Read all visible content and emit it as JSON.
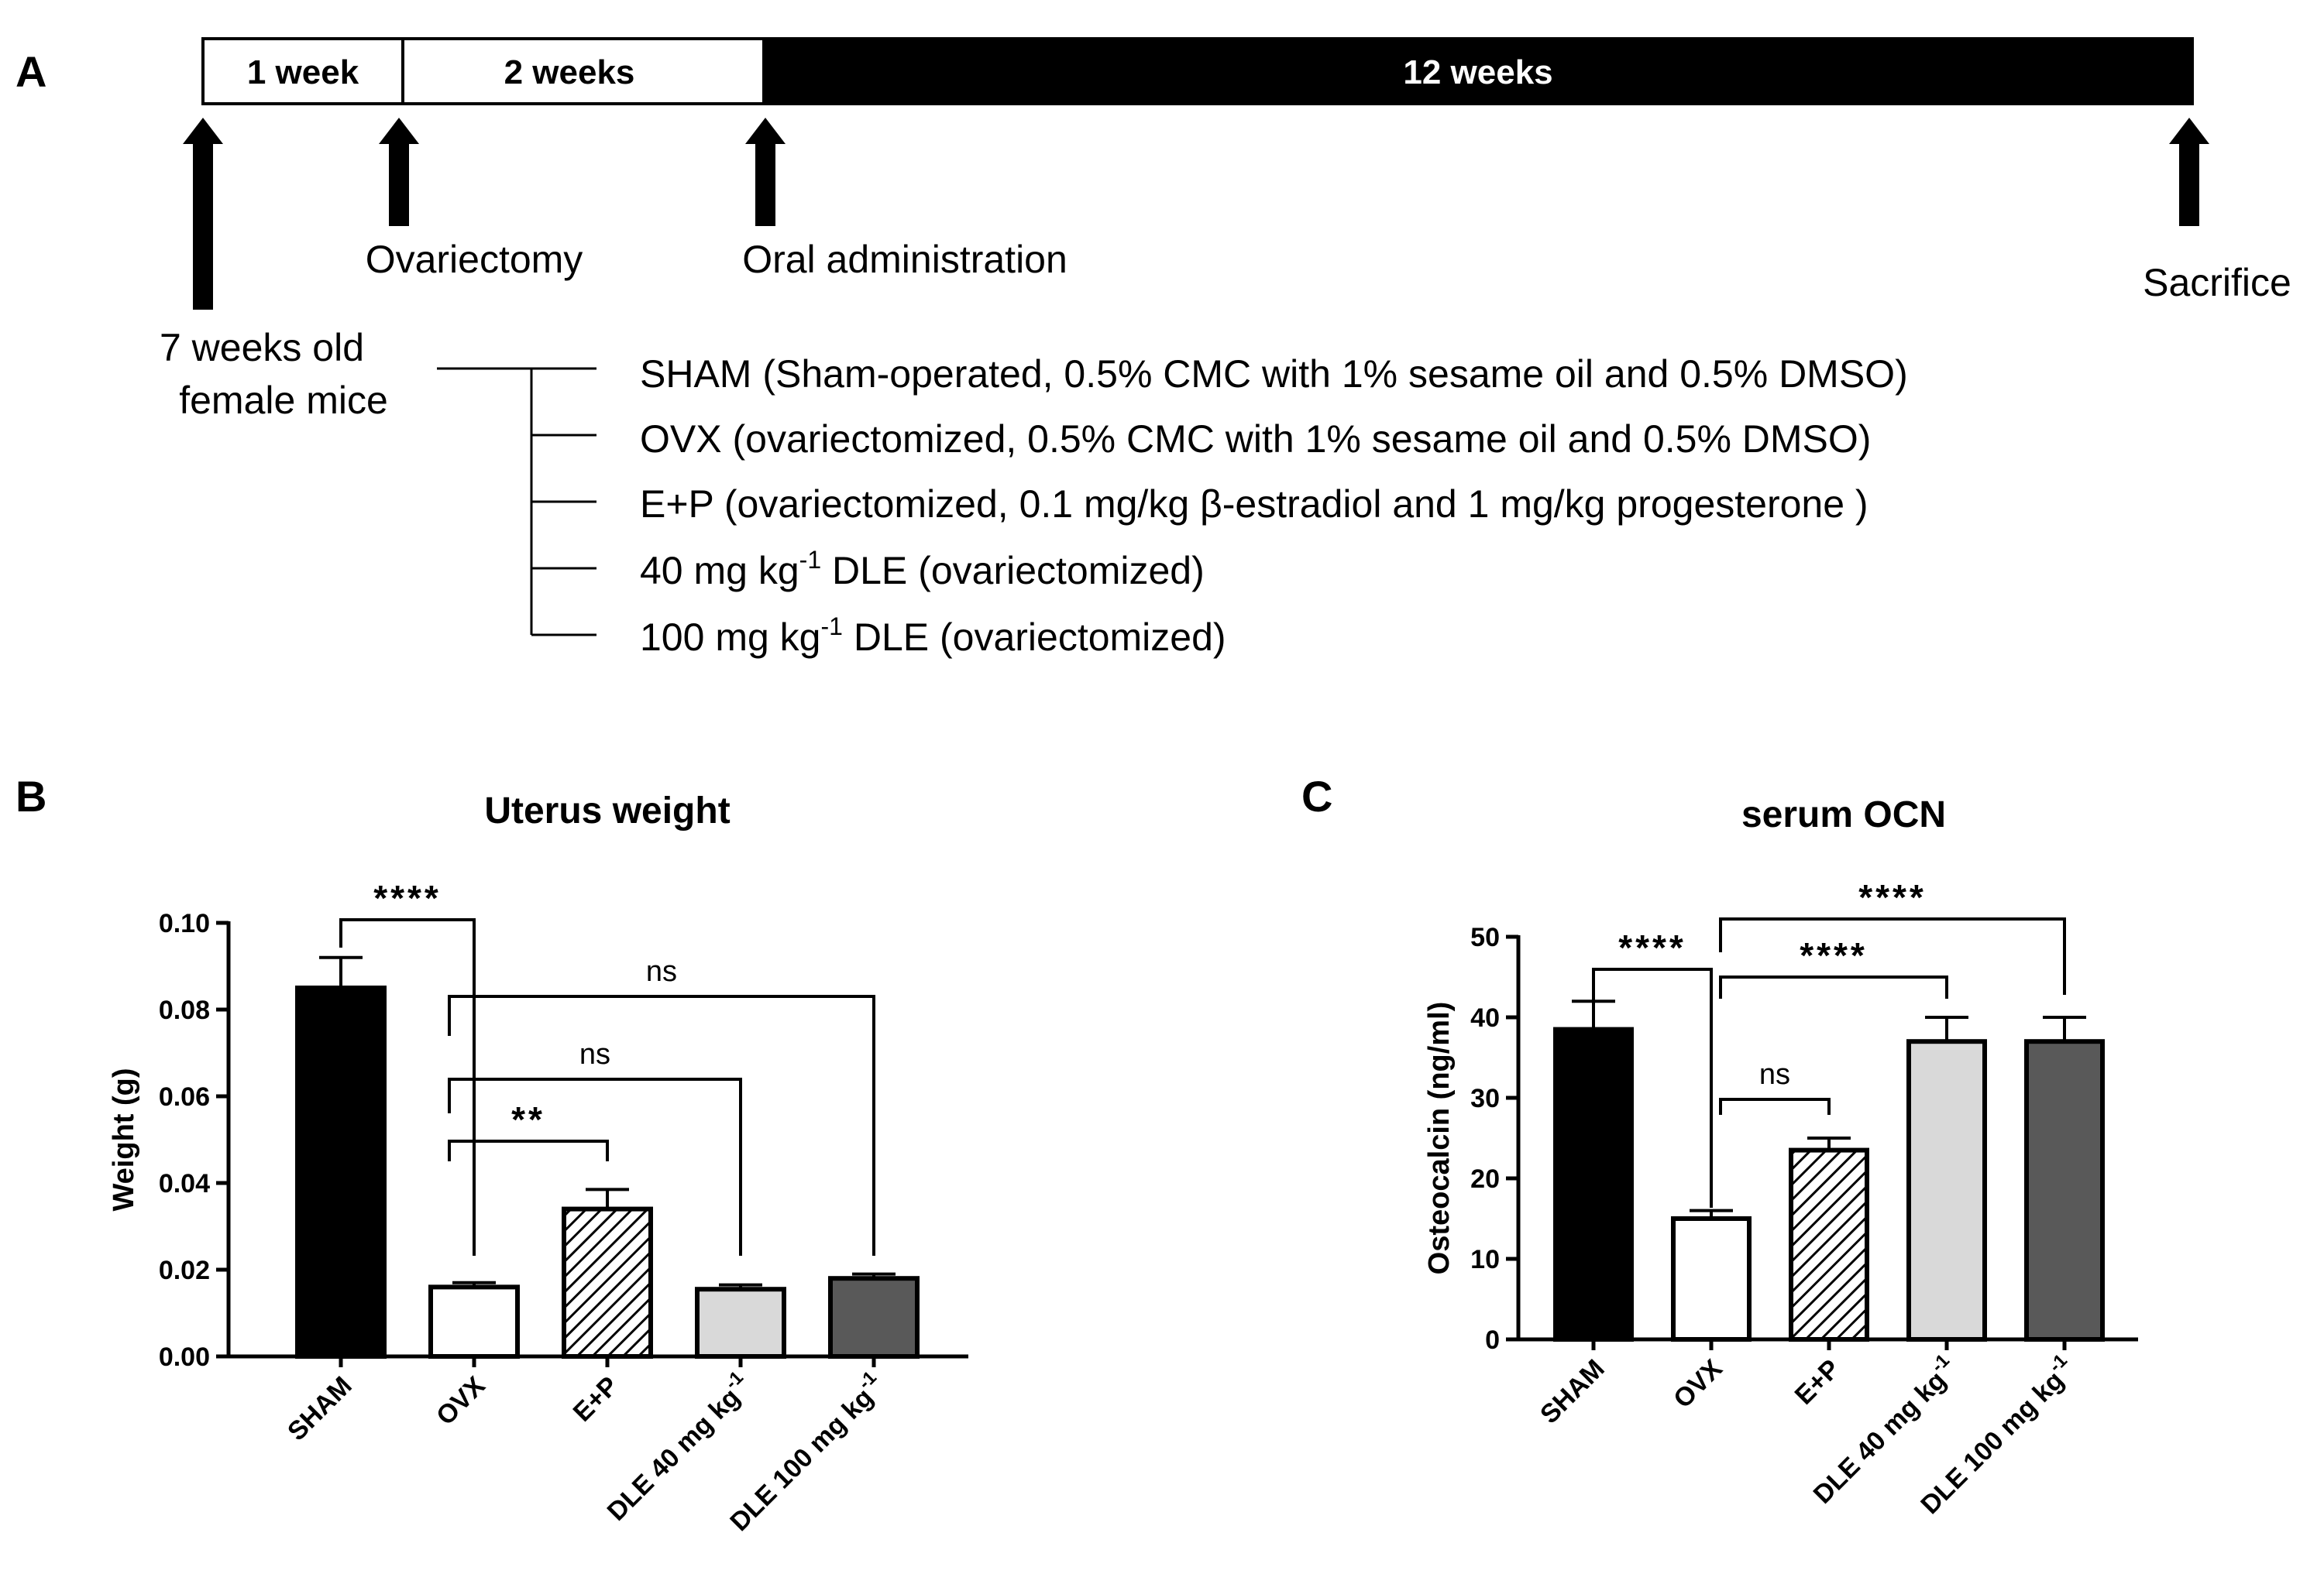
{
  "panels": {
    "a": "A",
    "b": "B",
    "c": "C"
  },
  "timeline": {
    "segments": [
      "1 week",
      "2 weeks",
      "12 weeks"
    ],
    "events": {
      "start": [
        "7 weeks old",
        "female mice"
      ],
      "ovariectomy": "Ovariectomy",
      "oral": "Oral administration",
      "sacrifice": "Sacrifice"
    }
  },
  "groups": [
    {
      "text": "SHAM (Sham-operated, 0.5% CMC with 1% sesame oil and 0.5% DMSO)"
    },
    {
      "text": "OVX (ovariectomized, 0.5% CMC with 1% sesame oil and 0.5% DMSO)"
    },
    {
      "text": "E+P (ovariectomized, 0.1 mg/kg β-estradiol and 1 mg/kg progesterone )"
    },
    {
      "pre": "40 mg kg",
      "sup": "-1",
      "post": " DLE (ovariectomized)"
    },
    {
      "pre": "100 mg kg",
      "sup": "-1",
      "post": " DLE (ovariectomized)"
    }
  ],
  "chart_data": [
    {
      "type": "bar",
      "title": "Uterus weight",
      "ylabel": "Weight (g)",
      "xlabel": "",
      "ylim": [
        0,
        0.1
      ],
      "yticks": [
        "0.00",
        "0.02",
        "0.04",
        "0.06",
        "0.08",
        "0.10"
      ],
      "categories": [
        "SHAM",
        "OVX",
        "E+P",
        "DLE 40 mg kg",
        "DLE 100 mg kg"
      ],
      "category_sup": "-1",
      "values": [
        0.085,
        0.016,
        0.034,
        0.0155,
        0.018
      ],
      "errors": [
        0.007,
        0.001,
        0.0045,
        0.001,
        0.001
      ],
      "fills": [
        "#000000",
        "#ffffff",
        "#hatch",
        "#d9d9d9",
        "#595959"
      ],
      "comparisons": [
        {
          "from": 0,
          "to": 1,
          "label": "****"
        },
        {
          "from": 1,
          "to": 4,
          "label": "ns"
        },
        {
          "from": 1,
          "to": 3,
          "label": "ns"
        },
        {
          "from": 1,
          "to": 2,
          "label": "**"
        }
      ]
    },
    {
      "type": "bar",
      "title": "serum OCN",
      "ylabel": "Osteocalcin (ng/ml)",
      "xlabel": "",
      "ylim": [
        0,
        50
      ],
      "yticks": [
        "0",
        "10",
        "20",
        "30",
        "40",
        "50"
      ],
      "categories": [
        "SHAM",
        "OVX",
        "E+P",
        "DLE 40 mg kg",
        "DLE 100 mg kg"
      ],
      "category_sup": "-1",
      "values": [
        38.5,
        15,
        23.5,
        37,
        37
      ],
      "errors": [
        3.5,
        1,
        1.5,
        3,
        3
      ],
      "fills": [
        "#000000",
        "#ffffff",
        "#hatch",
        "#d9d9d9",
        "#595959"
      ],
      "comparisons": [
        {
          "from": 0,
          "to": 1,
          "label": "****"
        },
        {
          "from": 1,
          "to": 4,
          "label": "****"
        },
        {
          "from": 1,
          "to": 3,
          "label": "****"
        },
        {
          "from": 1,
          "to": 2,
          "label": "ns"
        }
      ]
    }
  ]
}
